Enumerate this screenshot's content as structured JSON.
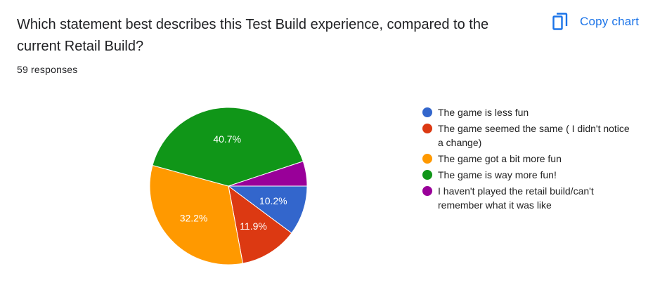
{
  "title": "Which statement best describes this Test Build experience, compared to the current Retail Build?",
  "responses": "59 responses",
  "copy_chart": {
    "label": "Copy chart",
    "icon": "copy-icon",
    "color": "#1a73e8"
  },
  "chart_data": {
    "type": "pie",
    "title": "Which statement best describes this Test Build experience, compared to the current Retail Build?",
    "legend_position": "right",
    "slices": [
      {
        "label": "The game is less fun",
        "percent": 10.2,
        "value_label": "10.2%",
        "color": "#3366cc"
      },
      {
        "label": "The game seemed the same ( I didn't notice a change)",
        "percent": 11.9,
        "value_label": "11.9%",
        "color": "#dc3912"
      },
      {
        "label": "The game got a bit more fun",
        "percent": 32.2,
        "value_label": "32.2%",
        "color": "#ff9900"
      },
      {
        "label": "The game is way more fun!",
        "percent": 40.7,
        "value_label": "40.7%",
        "color": "#109618"
      },
      {
        "label": "I haven't played the retail build/can't remember what it was like",
        "percent": 5.1,
        "value_label": "",
        "color": "#990099"
      }
    ]
  }
}
